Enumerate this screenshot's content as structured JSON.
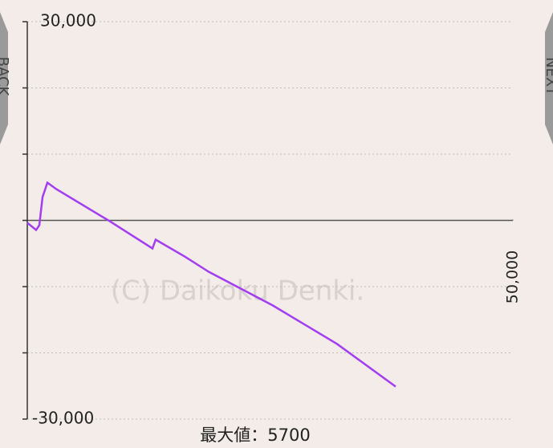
{
  "chart_data": {
    "type": "line",
    "x": [
      0,
      909,
      1240,
      1570,
      2070,
      2980,
      8350,
      12890,
      13220,
      16200,
      18680,
      25290,
      31900,
      37930
    ],
    "series": [
      {
        "color": "#a23ef0",
        "values": [
          -360,
          -1450,
          -730,
          3510,
          5700,
          4730,
          0,
          -4240,
          -2910,
          -5450,
          -7760,
          -12850,
          -18660,
          -25090
        ]
      }
    ],
    "xlim": [
      0,
      50000
    ],
    "xticks": [
      {
        "value": 50000,
        "label": "50,000"
      }
    ],
    "ylim": [
      -30000,
      30000
    ],
    "yticks": [
      {
        "value": 30000,
        "label": "30,000"
      },
      {
        "value": 20000,
        "label": null
      },
      {
        "value": 10000,
        "label": null
      },
      {
        "value": 0,
        "label": null
      },
      {
        "value": -10000,
        "label": null
      },
      {
        "value": -20000,
        "label": null
      },
      {
        "value": -30000,
        "label": "-30,000"
      }
    ],
    "grid": true,
    "max_label": "最大値：5700",
    "watermark": "(C) Daikoku Denki."
  },
  "navigation": {
    "back": "BACK",
    "next": "NEXT"
  }
}
